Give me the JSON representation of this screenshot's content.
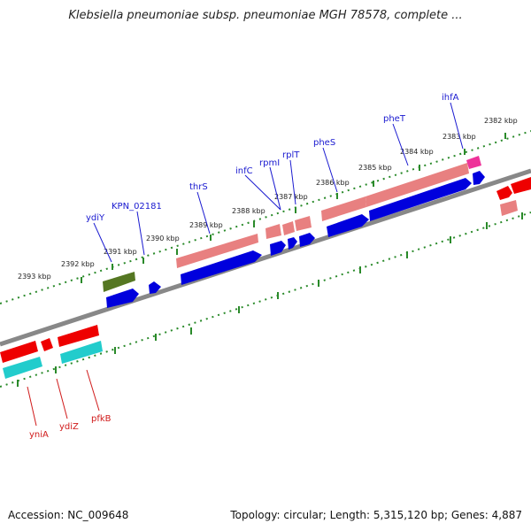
{
  "title": "Klebsiella pneumoniae subsp. pneumoniae MGH 78578, complete ...",
  "footer": {
    "accession": "Accession: NC_009648",
    "topology": "Topology: circular; Length: 5,315,120 bp; Genes: 4,887"
  },
  "colors": {
    "backbone": "#888888",
    "tick": "#2a8a2a",
    "cds_fwd": "#0000dd",
    "cds_rev": "#ee0000",
    "rrna": "#e88080",
    "trna_pink": "#ee3399",
    "olive": "#557722",
    "cyan": "#22cccc",
    "label_fwd": "#1a1ad0",
    "label_rev": "#d01a1a"
  },
  "scale_ticks": [
    {
      "label": "2393 kbp"
    },
    {
      "label": "2392 kbp"
    },
    {
      "label": "2391 kbp"
    },
    {
      "label": "2390 kbp"
    },
    {
      "label": "2389 kbp"
    },
    {
      "label": "2388 kbp"
    },
    {
      "label": "2387 kbp"
    },
    {
      "label": "2386 kbp"
    },
    {
      "label": "2385 kbp"
    },
    {
      "label": "2384 kbp"
    },
    {
      "label": "2383 kbp"
    },
    {
      "label": "2382 kbp"
    }
  ],
  "genes_forward": [
    {
      "name": "ydiY"
    },
    {
      "name": "KPN_02181"
    },
    {
      "name": "thrS"
    },
    {
      "name": "infC"
    },
    {
      "name": "rpmI"
    },
    {
      "name": "rplT"
    },
    {
      "name": "pheS"
    },
    {
      "name": "pheT"
    },
    {
      "name": "ihfA"
    }
  ],
  "genes_reverse": [
    {
      "name": "yniA"
    },
    {
      "name": "ydiZ"
    },
    {
      "name": "pfkB"
    }
  ]
}
